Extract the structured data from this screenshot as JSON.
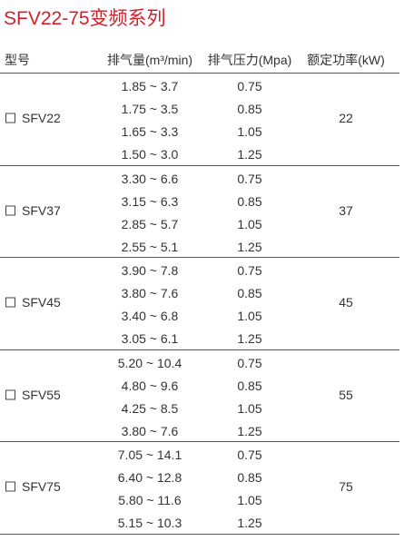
{
  "title": "SFV22-75变频系列",
  "header": [
    "型号",
    "排气量(m³/min)",
    "排气压力(Mpa)",
    "额定功率(kW)"
  ],
  "groups": [
    {
      "model": "SFV22",
      "power": "22",
      "rows": [
        [
          "1.85 ~ 3.7",
          "0.75"
        ],
        [
          "1.75 ~ 3.5",
          "0.85"
        ],
        [
          "1.65 ~ 3.3",
          "1.05"
        ],
        [
          "1.50 ~ 3.0",
          "1.25"
        ]
      ]
    },
    {
      "model": "SFV37",
      "power": "37",
      "rows": [
        [
          "3.30 ~ 6.6",
          "0.75"
        ],
        [
          "3.15 ~ 6.3",
          "0.85"
        ],
        [
          "2.85 ~ 5.7",
          "1.05"
        ],
        [
          "2.55 ~ 5.1",
          "1.25"
        ]
      ]
    },
    {
      "model": "SFV45",
      "power": "45",
      "rows": [
        [
          "3.90 ~ 7.8",
          "0.75"
        ],
        [
          "3.80 ~ 7.6",
          "0.85"
        ],
        [
          "3.40 ~ 6.8",
          "1.05"
        ],
        [
          "3.05 ~ 6.1",
          "1.25"
        ]
      ]
    },
    {
      "model": "SFV55",
      "power": "55",
      "rows": [
        [
          "5.20 ~ 10.4",
          "0.75"
        ],
        [
          "4.80 ~ 9.6",
          "0.85"
        ],
        [
          "4.25 ~ 8.5",
          "1.05"
        ],
        [
          "3.80 ~ 7.6",
          "1.25"
        ]
      ]
    },
    {
      "model": "SFV75",
      "power": "75",
      "rows": [
        [
          "7.05 ~ 14.1",
          "0.75"
        ],
        [
          "6.40 ~ 12.8",
          "0.85"
        ],
        [
          "5.80 ~ 11.6",
          "1.05"
        ],
        [
          "5.15 ~ 10.3",
          "1.25"
        ]
      ]
    }
  ]
}
